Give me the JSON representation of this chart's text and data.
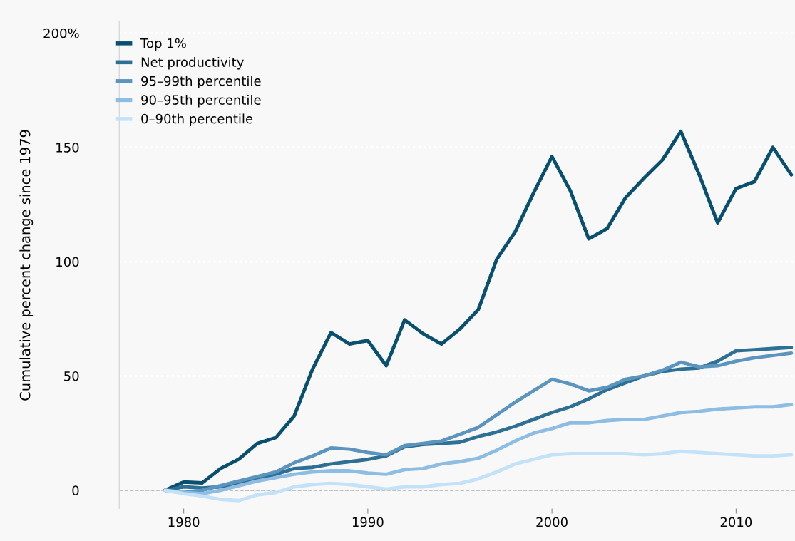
{
  "chart_data": {
    "type": "line",
    "ylabel": "Cumulative percent change since 1979",
    "x": [
      1979,
      1980,
      1981,
      1982,
      1983,
      1984,
      1985,
      1986,
      1987,
      1988,
      1989,
      1990,
      1991,
      1992,
      1993,
      1994,
      1995,
      1996,
      1997,
      1998,
      1999,
      2000,
      2001,
      2002,
      2003,
      2004,
      2005,
      2006,
      2007,
      2008,
      2009,
      2010,
      2011,
      2012,
      2013
    ],
    "series": [
      {
        "name": "Top 1%",
        "color": "#08506e",
        "values": [
          0,
          3.6,
          3.2,
          9.5,
          13.6,
          20.5,
          23,
          32.5,
          53,
          69,
          64,
          65.5,
          54.5,
          74.5,
          68.5,
          64,
          70.5,
          79,
          101,
          113,
          130,
          146,
          131,
          110,
          114.5,
          128,
          136.5,
          144.5,
          157,
          138,
          117,
          132,
          135,
          150,
          138
        ]
      },
      {
        "name": "Net productivity",
        "color": "#2e6f94",
        "values": [
          0,
          1.5,
          1,
          1.5,
          3,
          5,
          7,
          9.5,
          10,
          11.5,
          12.5,
          13.5,
          15,
          19,
          20,
          20.5,
          21,
          23.5,
          25.5,
          28,
          31,
          34,
          36.5,
          40,
          44,
          47,
          50,
          52,
          53,
          53.5,
          56.5,
          61,
          61.5,
          62,
          62.5
        ]
      },
      {
        "name": "95–99th percentile",
        "color": "#5b95bd",
        "values": [
          0,
          -1,
          0,
          2,
          4,
          6,
          8,
          12,
          15,
          18.5,
          18,
          16.5,
          15.5,
          19.5,
          20.5,
          21.5,
          24.5,
          27.5,
          33,
          38.5,
          43.5,
          48.5,
          46.5,
          43.5,
          45,
          48.5,
          50,
          52.5,
          56,
          54,
          54.5,
          56.5,
          58,
          59,
          60
        ]
      },
      {
        "name": "90–95th percentile",
        "color": "#8dbde3",
        "values": [
          0,
          -1,
          -1.5,
          0,
          2,
          4,
          5.5,
          7,
          8,
          8.5,
          8.5,
          7.5,
          7,
          9,
          9.5,
          11.5,
          12.5,
          14,
          17.5,
          21.5,
          25,
          27,
          29.5,
          29.5,
          30.5,
          31,
          31,
          32.5,
          34,
          34.5,
          35.5,
          36,
          36.5,
          36.5,
          37.5
        ]
      },
      {
        "name": "0–90th percentile",
        "color": "#c3e2f8",
        "values": [
          0,
          -1.5,
          -2.5,
          -4,
          -4.5,
          -2,
          -1,
          1.5,
          2.5,
          3,
          2.5,
          1.5,
          0.5,
          1.5,
          1.5,
          2.5,
          3,
          5,
          8,
          11.5,
          13.5,
          15.5,
          16,
          16,
          16,
          16,
          15.5,
          16,
          17,
          16.5,
          16,
          15.5,
          15,
          15,
          15.5
        ]
      }
    ],
    "xlim": [
      1976.5,
      2013.2
    ],
    "xticks": [
      1980,
      1990,
      2000,
      2010
    ],
    "ylim": [
      -8,
      205
    ],
    "yticks": [
      0,
      50,
      100,
      150,
      {
        "value": 200,
        "label": "200%"
      }
    ],
    "ref_lines": [
      {
        "axis": "y",
        "value": 0,
        "color": "#888888",
        "line_style": "dashed"
      }
    ],
    "grid": "y",
    "legend": "top left",
    "line_style": "solid"
  }
}
